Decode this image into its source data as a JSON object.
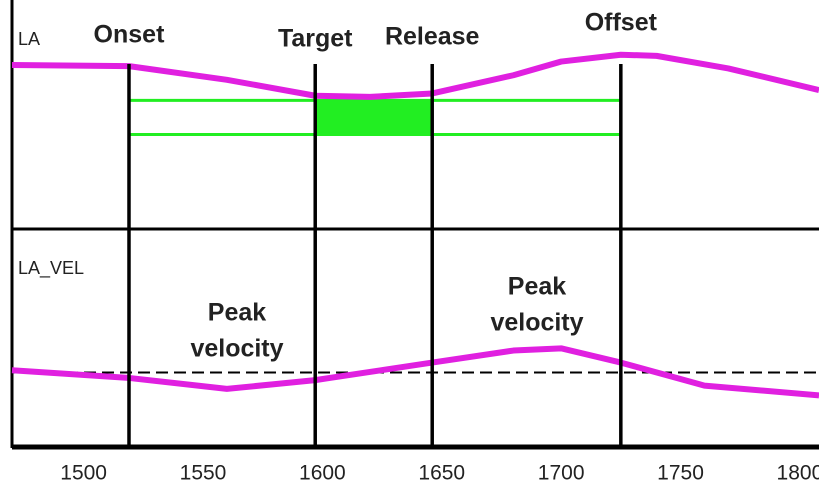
{
  "chart_data": [
    {
      "type": "line",
      "xlim": [
        1470,
        1808
      ],
      "ylim": [
        0,
        100
      ],
      "x": [
        1470,
        1519,
        1560,
        1597,
        1620,
        1646,
        1680,
        1700,
        1725,
        1740,
        1770,
        1808
      ],
      "series": [
        {
          "name": "LA",
          "color": "#e020e0",
          "values": [
            71.5,
            71,
            65,
            58,
            57.5,
            59,
            67,
            73,
            76,
            75.5,
            70,
            60.5
          ]
        }
      ],
      "events": [
        {
          "label": "Onset",
          "x": 1519
        },
        {
          "label": "Target",
          "x": 1597
        },
        {
          "label": "Release",
          "x": 1646
        },
        {
          "label": "Offset",
          "x": 1725
        }
      ],
      "band": {
        "color": "#22ee22",
        "low": 41,
        "high": 56
      }
    },
    {
      "type": "line",
      "xlim": [
        1470,
        1808
      ],
      "ylim": [
        0,
        100
      ],
      "xticks": [
        1500,
        1550,
        1600,
        1650,
        1700,
        1750,
        1800
      ],
      "x": [
        1470,
        1519,
        1560,
        1597,
        1646,
        1680,
        1700,
        1725,
        1760,
        1808
      ],
      "series": [
        {
          "name": "LA_VEL",
          "color": "#e020e0",
          "values": [
            35.5,
            32,
            27,
            31,
            39,
            44.5,
            45.5,
            39,
            28.5,
            24
          ]
        }
      ],
      "zero_line": 34.5,
      "annotations": [
        {
          "lines": [
            "Peak",
            "velocity"
          ]
        },
        {
          "lines": [
            "Peak",
            "velocity"
          ]
        }
      ]
    }
  ]
}
